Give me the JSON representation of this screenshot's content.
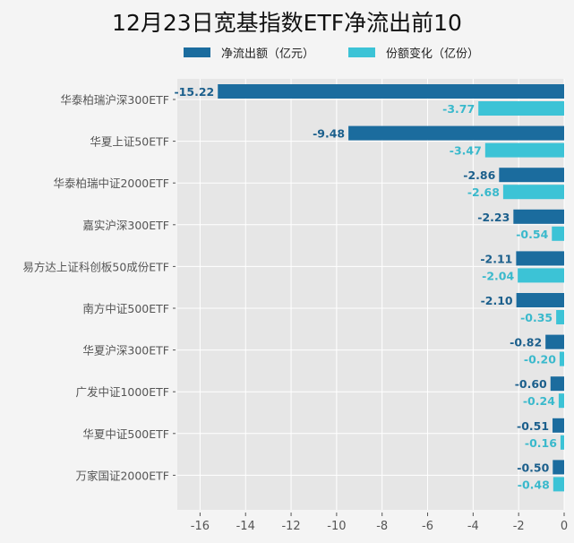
{
  "chart_data": {
    "type": "bar",
    "orientation": "horizontal",
    "title": "12月23日宽基指数ETF净流出前10",
    "categories": [
      "华泰柏瑞沪深300ETF",
      "华夏上证50ETF",
      "华泰柏瑞中证2000ETF",
      "嘉实沪深300ETF",
      "易方达上证科创板50成份ETF",
      "南方中证500ETF",
      "华夏沪深300ETF",
      "广发中证1000ETF",
      "华夏中证500ETF",
      "万家国证2000ETF"
    ],
    "series": [
      {
        "name": "净流出额（亿元）",
        "color": "#1b6c9e",
        "label_color": "#1b5f8c",
        "values": [
          -15.22,
          -9.48,
          -2.86,
          -2.23,
          -2.11,
          -2.1,
          -0.82,
          -0.6,
          -0.51,
          -0.5
        ],
        "labels": [
          "-15.22",
          "-9.48",
          "-2.86",
          "-2.23",
          "-2.11",
          "-2.10",
          "-0.82",
          "-0.60",
          "-0.51",
          "-0.50"
        ]
      },
      {
        "name": "份额变化（亿份）",
        "color": "#3cc3d6",
        "label_color": "#3ab9cc",
        "values": [
          -3.77,
          -3.47,
          -2.68,
          -0.54,
          -2.04,
          -0.35,
          -0.2,
          -0.24,
          -0.16,
          -0.48
        ],
        "labels": [
          "-3.77",
          "-3.47",
          "-2.68",
          "-0.54",
          "-2.04",
          "-0.35",
          "-0.20",
          "-0.24",
          "-0.16",
          "-0.48"
        ]
      }
    ],
    "xlim": [
      -17,
      0
    ],
    "xticks": [
      "-16",
      "-14",
      "-12",
      "-10",
      "-8",
      "-6",
      "-4",
      "-2",
      "0"
    ],
    "xtick_values": [
      -16,
      -14,
      -12,
      -10,
      -8,
      -6,
      -4,
      -2,
      0
    ],
    "xlabel": "",
    "ylabel": "",
    "grid": true,
    "legend_position": "top"
  }
}
